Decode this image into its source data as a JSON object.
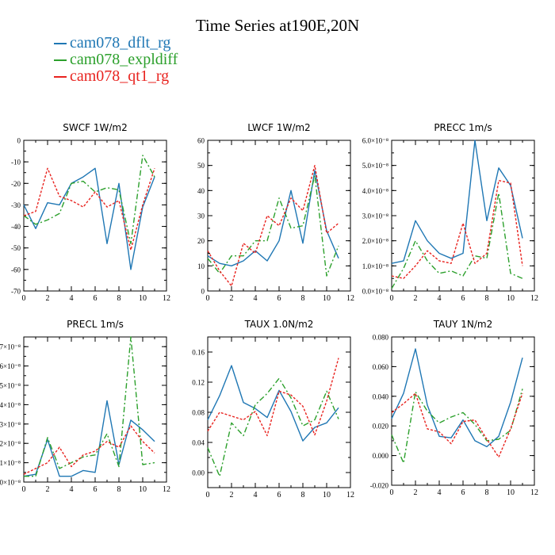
{
  "title": "Time Series at190E,20N",
  "legend": [
    {
      "name": "cam078_dflt_rg",
      "color": "#1f77b4"
    },
    {
      "name": "cam078_expldiff",
      "color": "#2ca02c"
    },
    {
      "name": "cam078_qt1_rg",
      "color": "#e8231f"
    }
  ],
  "chart_data": [
    {
      "type": "line",
      "title": "SWCF   1W/m2",
      "x": [
        0,
        1,
        2,
        3,
        4,
        5,
        6,
        7,
        8,
        9,
        10,
        11
      ],
      "xlim": [
        0,
        12
      ],
      "xticks": [
        0,
        2,
        4,
        6,
        8,
        10,
        12
      ],
      "ylim": [
        -70,
        0
      ],
      "yticks": [
        0,
        -10,
        -20,
        -30,
        -40,
        -50,
        -60,
        -70
      ],
      "ytick_labels": [
        "0",
        "-10",
        "-20",
        "-30",
        "-40",
        "-50",
        "-60",
        "-70"
      ],
      "series": [
        {
          "name": "cam078_dflt_rg",
          "values": [
            -30,
            -41,
            -29,
            -30,
            -20,
            -17,
            -13,
            -48,
            -20,
            -60,
            -31,
            -17
          ]
        },
        {
          "name": "cam078_expldiff",
          "values": [
            -35,
            -39,
            -37,
            -34,
            -20,
            -19,
            -24,
            -22,
            -23,
            -48,
            -7,
            -17
          ]
        },
        {
          "name": "cam078_qt1_rg",
          "values": [
            -35,
            -33,
            -13,
            -26,
            -28,
            -31,
            -24,
            -31,
            -28,
            -51,
            -30,
            -13
          ]
        }
      ]
    },
    {
      "type": "line",
      "title": "LWCF   1W/m2",
      "x": [
        0,
        1,
        2,
        3,
        4,
        5,
        6,
        7,
        8,
        9,
        10,
        11
      ],
      "xlim": [
        0,
        12
      ],
      "xticks": [
        0,
        2,
        4,
        6,
        8,
        10,
        12
      ],
      "ylim": [
        0,
        60
      ],
      "yticks": [
        0,
        10,
        20,
        30,
        40,
        50,
        60
      ],
      "ytick_labels": [
        "0",
        "10",
        "20",
        "30",
        "40",
        "50",
        "60"
      ],
      "series": [
        {
          "name": "cam078_dflt_rg",
          "values": [
            14,
            11,
            10,
            12,
            16,
            12,
            20,
            40,
            19,
            48,
            24,
            13
          ]
        },
        {
          "name": "cam078_expldiff",
          "values": [
            13,
            7,
            14,
            14,
            20,
            20,
            37,
            25,
            26,
            46,
            6,
            18
          ]
        },
        {
          "name": "cam078_qt1_rg",
          "values": [
            16,
            8,
            2,
            19,
            15,
            30,
            26,
            37,
            32,
            50,
            23,
            27
          ]
        }
      ]
    },
    {
      "type": "line",
      "title": "PRECC   1m/s",
      "x": [
        0,
        1,
        2,
        3,
        4,
        5,
        6,
        7,
        8,
        9,
        10,
        11
      ],
      "xlim": [
        0,
        12
      ],
      "xticks": [
        0,
        2,
        4,
        6,
        8,
        10,
        12
      ],
      "ylim": [
        0,
        6.0
      ],
      "yticks": [
        0,
        1,
        2,
        3,
        4,
        5,
        6
      ],
      "ytick_labels": [
        "0.0×10⁻⁸",
        "1.0×10⁻⁸",
        "2.0×10⁻⁸",
        "3.0×10⁻⁸",
        "4.0×10⁻⁸",
        "5.0×10⁻⁸",
        "6.0×10⁻⁸"
      ],
      "series": [
        {
          "name": "cam078_dflt_rg",
          "values": [
            1.1,
            1.2,
            2.8,
            2.0,
            1.5,
            1.3,
            1.5,
            6.0,
            2.8,
            4.9,
            4.2,
            2.1
          ]
        },
        {
          "name": "cam078_expldiff",
          "values": [
            0.1,
            0.9,
            2.0,
            1.2,
            0.7,
            0.8,
            0.6,
            1.4,
            1.3,
            3.9,
            0.7,
            0.5
          ]
        },
        {
          "name": "cam078_qt1_rg",
          "values": [
            0.6,
            0.5,
            1.0,
            1.6,
            1.2,
            1.1,
            2.7,
            1.1,
            1.5,
            4.4,
            4.3,
            1.0
          ]
        }
      ]
    },
    {
      "type": "line",
      "title": "PRECL   1m/s",
      "x": [
        0,
        1,
        2,
        3,
        4,
        5,
        6,
        7,
        8,
        9,
        10,
        11
      ],
      "xlim": [
        0,
        12
      ],
      "xticks": [
        0,
        2,
        4,
        6,
        8,
        10,
        12
      ],
      "ylim": [
        0,
        7.5
      ],
      "yticks": [
        0,
        1,
        2,
        3,
        4,
        5,
        6,
        7
      ],
      "ytick_labels": [
        "0×10⁻⁸",
        "1×10⁻⁸",
        "2×10⁻⁸",
        "3×10⁻⁸",
        "4×10⁻⁸",
        "5×10⁻⁸",
        "6×10⁻⁸",
        "7×10⁻⁸"
      ],
      "series": [
        {
          "name": "cam078_dflt_rg",
          "values": [
            0.3,
            0.4,
            2.2,
            0.3,
            0.3,
            0.6,
            0.5,
            4.2,
            0.9,
            3.2,
            2.7,
            2.1
          ]
        },
        {
          "name": "cam078_expldiff",
          "values": [
            0.3,
            0.3,
            2.3,
            0.7,
            1.0,
            1.3,
            1.4,
            2.5,
            0.8,
            7.5,
            0.9,
            1.0
          ]
        },
        {
          "name": "cam078_qt1_rg",
          "values": [
            0.4,
            0.7,
            1.0,
            1.8,
            0.8,
            1.4,
            1.6,
            2.1,
            1.8,
            2.9,
            2.1,
            1.5
          ]
        }
      ]
    },
    {
      "type": "line",
      "title": "TAUX   1.0N/m2",
      "x": [
        0,
        1,
        2,
        3,
        4,
        5,
        6,
        7,
        8,
        9,
        10,
        11
      ],
      "xlim": [
        0,
        12
      ],
      "xticks": [
        0,
        2,
        4,
        6,
        8,
        10,
        12
      ],
      "ylim": [
        -0.02,
        0.18
      ],
      "yticks": [
        0.0,
        0.04,
        0.08,
        0.12,
        0.16
      ],
      "ytick_labels": [
        "0.00",
        "0.04",
        "0.08",
        "0.12",
        "0.16"
      ],
      "series": [
        {
          "name": "cam078_dflt_rg",
          "values": [
            0.07,
            0.102,
            0.142,
            0.093,
            0.085,
            0.073,
            0.109,
            0.081,
            0.042,
            0.06,
            0.066,
            0.086
          ]
        },
        {
          "name": "cam078_expldiff",
          "values": [
            0.033,
            -0.005,
            0.066,
            0.049,
            0.09,
            0.105,
            0.125,
            0.099,
            0.062,
            0.07,
            0.108,
            0.071
          ]
        },
        {
          "name": "cam078_qt1_rg",
          "values": [
            0.055,
            0.08,
            0.075,
            0.07,
            0.081,
            0.049,
            0.108,
            0.103,
            0.088,
            0.05,
            0.095,
            0.152
          ]
        }
      ]
    },
    {
      "type": "line",
      "title": "TAUY   1N/m2",
      "x": [
        0,
        1,
        2,
        3,
        4,
        5,
        6,
        7,
        8,
        9,
        10,
        11
      ],
      "xlim": [
        0,
        12
      ],
      "xticks": [
        0,
        2,
        4,
        6,
        8,
        10,
        12
      ],
      "ylim": [
        -0.02,
        0.08
      ],
      "yticks": [
        -0.02,
        0.0,
        0.02,
        0.04,
        0.06,
        0.08
      ],
      "ytick_labels": [
        "-0.020",
        "0.000",
        "0.020",
        "0.040",
        "0.060",
        "0.080"
      ],
      "series": [
        {
          "name": "cam078_dflt_rg",
          "values": [
            0.025,
            0.042,
            0.072,
            0.034,
            0.013,
            0.012,
            0.024,
            0.01,
            0.006,
            0.013,
            0.036,
            0.066
          ]
        },
        {
          "name": "cam078_expldiff",
          "values": [
            0.014,
            -0.005,
            0.043,
            0.03,
            0.022,
            0.026,
            0.029,
            0.021,
            0.01,
            0.011,
            0.017,
            0.045
          ]
        },
        {
          "name": "cam078_qt1_rg",
          "values": [
            0.029,
            0.035,
            0.042,
            0.018,
            0.016,
            0.008,
            0.023,
            0.024,
            0.011,
            -0.001,
            0.018,
            0.042
          ]
        }
      ]
    }
  ]
}
